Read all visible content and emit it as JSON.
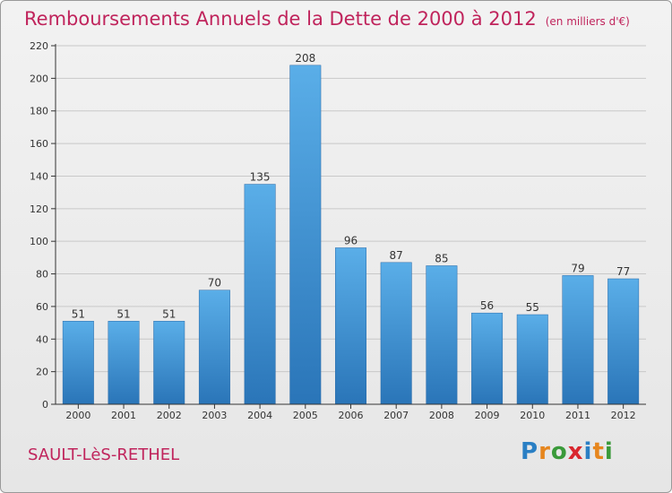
{
  "title": "Remboursements Annuels de la Dette de 2000 à 2012",
  "unit": "(en milliers d'€)",
  "commune": "SAULT-LèS-RETHEL",
  "logo": {
    "text": "Proxiti",
    "letters": [
      "P",
      "r",
      "o",
      "x",
      "i",
      "t",
      "i"
    ],
    "colors": [
      "#2a7fc4",
      "#e6861e",
      "#3a9a3a",
      "#d9272e",
      "#2a7fc4",
      "#e6861e",
      "#3a9a3a"
    ]
  },
  "colors": {
    "title": "#c0245c",
    "bar_top": "#5aaee8",
    "bar_bottom": "#2a75b8",
    "axis": "#333333",
    "grid": "#c8c8c8"
  },
  "chart_data": {
    "type": "bar",
    "categories": [
      "2000",
      "2001",
      "2002",
      "2003",
      "2004",
      "2005",
      "2006",
      "2007",
      "2008",
      "2009",
      "2010",
      "2011",
      "2012"
    ],
    "values": [
      51,
      51,
      51,
      70,
      135,
      208,
      96,
      87,
      85,
      56,
      55,
      79,
      77
    ],
    "ylim": [
      0,
      220
    ],
    "yticks": [
      0,
      20,
      40,
      60,
      80,
      100,
      120,
      140,
      160,
      180,
      200,
      220
    ],
    "grid": true,
    "data_labels": true
  }
}
